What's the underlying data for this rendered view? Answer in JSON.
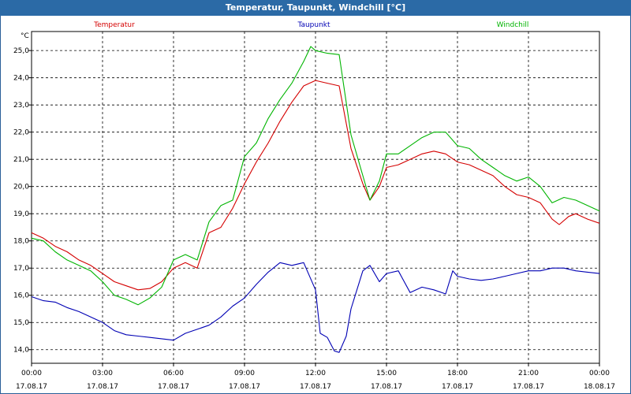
{
  "window": {
    "title": "Temperatur, Taupunkt, Windchill [°C]"
  },
  "chart_data": {
    "type": "line",
    "title": "Temperatur, Taupunkt, Windchill [°C]",
    "ylabel": "°C",
    "xlabel": "",
    "ylim": [
      13.5,
      25.7
    ],
    "yticks": [
      14.0,
      15.0,
      16.0,
      17.0,
      18.0,
      19.0,
      20.0,
      21.0,
      22.0,
      23.0,
      24.0,
      25.0
    ],
    "x_range_hours": [
      0,
      24
    ],
    "grid": true,
    "xticks": [
      {
        "time": "00:00",
        "date": "17.08.17"
      },
      {
        "time": "03:00",
        "date": "17.08.17"
      },
      {
        "time": "06:00",
        "date": "17.08.17"
      },
      {
        "time": "09:00",
        "date": "17.08.17"
      },
      {
        "time": "12:00",
        "date": "17.08.17"
      },
      {
        "time": "15:00",
        "date": "17.08.17"
      },
      {
        "time": "18:00",
        "date": "17.08.17"
      },
      {
        "time": "21:00",
        "date": "17.08.17"
      },
      {
        "time": "00:00",
        "date": "18.08.17"
      }
    ],
    "series": [
      {
        "name": "Temperatur",
        "color": "#d40000",
        "points": [
          [
            0.0,
            18.3
          ],
          [
            0.5,
            18.1
          ],
          [
            1.0,
            17.8
          ],
          [
            1.5,
            17.6
          ],
          [
            2.0,
            17.3
          ],
          [
            2.5,
            17.1
          ],
          [
            3.0,
            16.8
          ],
          [
            3.5,
            16.5
          ],
          [
            4.0,
            16.35
          ],
          [
            4.5,
            16.2
          ],
          [
            5.0,
            16.25
          ],
          [
            5.5,
            16.5
          ],
          [
            6.0,
            17.0
          ],
          [
            6.5,
            17.2
          ],
          [
            7.0,
            17.0
          ],
          [
            7.5,
            18.3
          ],
          [
            8.0,
            18.5
          ],
          [
            8.5,
            19.2
          ],
          [
            9.0,
            20.1
          ],
          [
            9.5,
            20.9
          ],
          [
            10.0,
            21.6
          ],
          [
            10.5,
            22.4
          ],
          [
            11.0,
            23.1
          ],
          [
            11.5,
            23.7
          ],
          [
            12.0,
            23.9
          ],
          [
            12.5,
            23.8
          ],
          [
            13.0,
            23.7
          ],
          [
            13.5,
            21.4
          ],
          [
            14.0,
            20.1
          ],
          [
            14.3,
            19.5
          ],
          [
            14.7,
            20.0
          ],
          [
            15.0,
            20.7
          ],
          [
            15.5,
            20.8
          ],
          [
            16.0,
            21.0
          ],
          [
            16.5,
            21.2
          ],
          [
            17.0,
            21.3
          ],
          [
            17.5,
            21.2
          ],
          [
            18.0,
            20.9
          ],
          [
            18.5,
            20.8
          ],
          [
            19.0,
            20.6
          ],
          [
            19.5,
            20.4
          ],
          [
            20.0,
            20.0
          ],
          [
            20.5,
            19.7
          ],
          [
            21.0,
            19.6
          ],
          [
            21.5,
            19.4
          ],
          [
            22.0,
            18.8
          ],
          [
            22.3,
            18.6
          ],
          [
            22.7,
            18.9
          ],
          [
            23.0,
            19.0
          ],
          [
            23.5,
            18.8
          ],
          [
            24.0,
            18.65
          ]
        ]
      },
      {
        "name": "Taupunkt",
        "color": "#0000b4",
        "points": [
          [
            0.0,
            15.95
          ],
          [
            0.5,
            15.8
          ],
          [
            1.0,
            15.75
          ],
          [
            1.5,
            15.55
          ],
          [
            2.0,
            15.4
          ],
          [
            2.5,
            15.2
          ],
          [
            3.0,
            15.0
          ],
          [
            3.5,
            14.7
          ],
          [
            4.0,
            14.55
          ],
          [
            4.5,
            14.5
          ],
          [
            5.0,
            14.45
          ],
          [
            5.5,
            14.4
          ],
          [
            6.0,
            14.35
          ],
          [
            6.5,
            14.6
          ],
          [
            7.0,
            14.75
          ],
          [
            7.5,
            14.9
          ],
          [
            8.0,
            15.2
          ],
          [
            8.5,
            15.6
          ],
          [
            9.0,
            15.9
          ],
          [
            9.5,
            16.4
          ],
          [
            10.0,
            16.85
          ],
          [
            10.5,
            17.2
          ],
          [
            11.0,
            17.1
          ],
          [
            11.5,
            17.2
          ],
          [
            12.0,
            16.2
          ],
          [
            12.2,
            14.6
          ],
          [
            12.5,
            14.45
          ],
          [
            12.8,
            13.95
          ],
          [
            13.0,
            13.9
          ],
          [
            13.3,
            14.5
          ],
          [
            13.5,
            15.5
          ],
          [
            14.0,
            16.9
          ],
          [
            14.3,
            17.1
          ],
          [
            14.7,
            16.5
          ],
          [
            15.0,
            16.8
          ],
          [
            15.5,
            16.9
          ],
          [
            16.0,
            16.1
          ],
          [
            16.5,
            16.3
          ],
          [
            17.0,
            16.2
          ],
          [
            17.5,
            16.05
          ],
          [
            17.8,
            16.9
          ],
          [
            18.0,
            16.7
          ],
          [
            18.5,
            16.6
          ],
          [
            19.0,
            16.55
          ],
          [
            19.5,
            16.6
          ],
          [
            20.0,
            16.7
          ],
          [
            20.5,
            16.8
          ],
          [
            21.0,
            16.9
          ],
          [
            21.5,
            16.9
          ],
          [
            22.0,
            17.0
          ],
          [
            22.5,
            17.0
          ],
          [
            23.0,
            16.9
          ],
          [
            23.5,
            16.85
          ],
          [
            24.0,
            16.8
          ]
        ]
      },
      {
        "name": "Windchill",
        "color": "#00b400",
        "points": [
          [
            0.0,
            18.1
          ],
          [
            0.5,
            18.0
          ],
          [
            1.0,
            17.6
          ],
          [
            1.5,
            17.3
          ],
          [
            2.0,
            17.1
          ],
          [
            2.5,
            16.9
          ],
          [
            3.0,
            16.5
          ],
          [
            3.5,
            16.0
          ],
          [
            4.0,
            15.85
          ],
          [
            4.5,
            15.65
          ],
          [
            5.0,
            15.9
          ],
          [
            5.5,
            16.3
          ],
          [
            6.0,
            17.3
          ],
          [
            6.5,
            17.5
          ],
          [
            7.0,
            17.3
          ],
          [
            7.5,
            18.7
          ],
          [
            8.0,
            19.3
          ],
          [
            8.5,
            19.5
          ],
          [
            9.0,
            21.1
          ],
          [
            9.5,
            21.6
          ],
          [
            10.0,
            22.5
          ],
          [
            10.5,
            23.2
          ],
          [
            11.0,
            23.8
          ],
          [
            11.5,
            24.6
          ],
          [
            11.8,
            25.15
          ],
          [
            12.0,
            25.0
          ],
          [
            12.5,
            24.9
          ],
          [
            13.0,
            24.85
          ],
          [
            13.5,
            21.9
          ],
          [
            14.0,
            20.4
          ],
          [
            14.3,
            19.5
          ],
          [
            14.7,
            20.2
          ],
          [
            15.0,
            21.2
          ],
          [
            15.5,
            21.2
          ],
          [
            16.0,
            21.5
          ],
          [
            16.5,
            21.8
          ],
          [
            17.0,
            22.0
          ],
          [
            17.5,
            22.0
          ],
          [
            18.0,
            21.5
          ],
          [
            18.5,
            21.4
          ],
          [
            19.0,
            21.0
          ],
          [
            19.5,
            20.7
          ],
          [
            20.0,
            20.4
          ],
          [
            20.5,
            20.2
          ],
          [
            21.0,
            20.35
          ],
          [
            21.5,
            20.0
          ],
          [
            22.0,
            19.4
          ],
          [
            22.5,
            19.6
          ],
          [
            23.0,
            19.5
          ],
          [
            23.5,
            19.3
          ],
          [
            24.0,
            19.1
          ]
        ]
      }
    ]
  }
}
